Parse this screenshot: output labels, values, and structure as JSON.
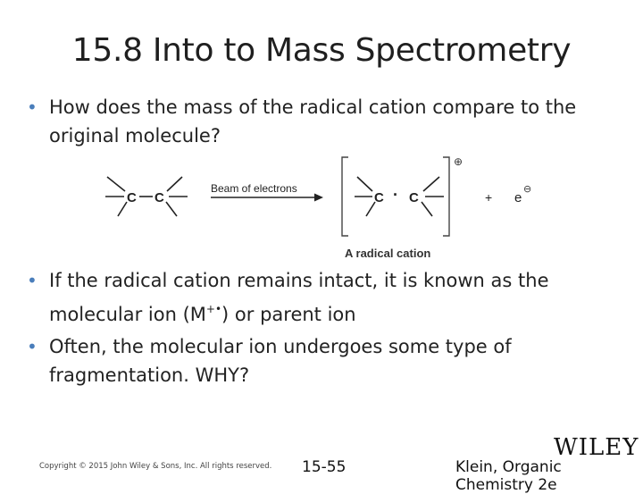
{
  "slide": {
    "title": "15.8 Into to Mass Spectrometry",
    "bullets": [
      "How does the mass of the radical cation compare to the original molecule?",
      "If the radical cation remains intact, it is known as the molecular ion (M",
      "Often, the molecular ion undergoes some type of fragmentation.  WHY?"
    ],
    "bullet2_suffix": ") or parent ion",
    "bullet2_superscript": "+•",
    "bullet_marker": "•"
  },
  "diagram": {
    "molecule_left_atom": "C",
    "molecule_right_atom": "C",
    "arrow_label": "Beam of electrons",
    "cation_left_atom": "C",
    "radical_dot": "·",
    "cation_right_atom": "C",
    "charge_symbol": "⊕",
    "plus_sign": "+",
    "electron": "e",
    "electron_charge": "⊖",
    "caption": "A radical cation"
  },
  "footer": {
    "copyright": "Copyright © 2015 John Wiley & Sons, Inc. All rights reserved.",
    "page": "15-55",
    "book": "Klein, Organic Chemistry 2e",
    "logo": "WILEY"
  }
}
